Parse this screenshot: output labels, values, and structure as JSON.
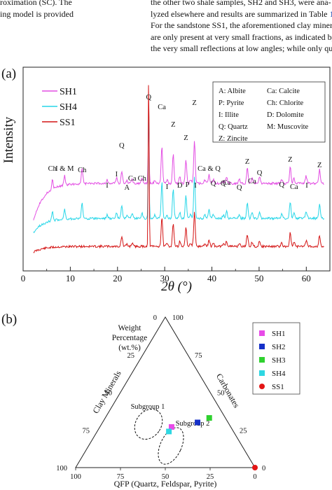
{
  "text": {
    "left_lines": [
      "roximation (SC). The",
      "ing model is provided"
    ],
    "right_lines": [
      "the other two shale samples, SH2 and SH3, were ana-",
      "lyzed elsewhere and results are summarized in Table 1.",
      "For the sandstone SS1, the aforementioned clay minerals",
      "are only present at very small fractions, as indicated by",
      "the very small reflections at low angles; while only quartz"
    ],
    "table_ref": "1"
  },
  "figure_a": {
    "panel_label": "(a)",
    "chart_data": {
      "type": "line",
      "xlabel": "2θ (°)",
      "ylabel": "Intensity",
      "xlim": [
        0,
        65
      ],
      "x_ticks": [
        0,
        10,
        20,
        30,
        40,
        50,
        60
      ],
      "series": [
        {
          "name": "SH1",
          "color": "#e34fe3"
        },
        {
          "name": "SH4",
          "color": "#27d6e8"
        },
        {
          "name": "SS1",
          "color": "#d41515"
        }
      ],
      "legend_placement": "top-left",
      "phase_legend": [
        "A:  Albite",
        "Ca: Calcite",
        "P:  Pyrite",
        "Ch: Chlorite",
        "I:  Illite",
        "D:  Dolomite",
        "Q:  Quartz",
        "M:  Muscovite",
        "Z:  Zincite"
      ],
      "peak_annotations": [
        {
          "label": "Ch",
          "x": 6.2
        },
        {
          "label": "I & M",
          "x": 8.8
        },
        {
          "label": "Ch",
          "x": 12.5
        },
        {
          "label": "I",
          "x": 17.8
        },
        {
          "label": "I",
          "x": 19.8
        },
        {
          "label": "Q",
          "x": 20.9
        },
        {
          "label": "A",
          "x": 22.0
        },
        {
          "label": "Ca",
          "x": 23.1
        },
        {
          "label": "Ch",
          "x": 25.2
        },
        {
          "label": "Q",
          "x": 26.6
        },
        {
          "label": "Ca",
          "x": 29.4
        },
        {
          "label": "I",
          "x": 30.5
        },
        {
          "label": "Z",
          "x": 31.8
        },
        {
          "label": "D",
          "x": 33.2
        },
        {
          "label": "P",
          "x": 34.8
        },
        {
          "label": "Z",
          "x": 34.5
        },
        {
          "label": "Z",
          "x": 36.3
        },
        {
          "label": "I",
          "x": 36.5
        },
        {
          "label": "Ca & Q",
          "x": 39.4
        },
        {
          "label": "Q",
          "x": 40.3
        },
        {
          "label": "Q",
          "x": 42.4
        },
        {
          "label": "Ca",
          "x": 43.1
        },
        {
          "label": "Q",
          "x": 45.8
        },
        {
          "label": "Z",
          "x": 47.5
        },
        {
          "label": "Ca",
          "x": 48.5
        },
        {
          "label": "Q",
          "x": 50.1
        },
        {
          "label": "Q",
          "x": 54.8
        },
        {
          "label": "Z",
          "x": 56.6
        },
        {
          "label": "Ca",
          "x": 57.4
        },
        {
          "label": "I",
          "x": 60.1
        },
        {
          "label": "Z",
          "x": 62.8
        }
      ]
    }
  },
  "figure_b": {
    "panel_label": "(b)",
    "chart_data": {
      "type": "scatter",
      "plot": "ternary",
      "axis_labels": {
        "weight": [
          "Weight",
          "Percentage",
          "(wt.%)"
        ],
        "clay": "Clay Minerals",
        "carbonates": "Carbonates",
        "qfp": "QFP (Quartz, Feldspar, Pyrite)"
      },
      "ticks": [
        "0",
        "25",
        "50",
        "75",
        "100"
      ],
      "series": [
        {
          "name": "SH1",
          "color": "#e84be8",
          "marker": "square",
          "qfp": 40,
          "carb": 27,
          "clay": 33
        },
        {
          "name": "SH2",
          "color": "#1530c8",
          "marker": "square",
          "qfp": 53,
          "carb": 30,
          "clay": 17
        },
        {
          "name": "SH3",
          "color": "#2fd12f",
          "marker": "square",
          "qfp": 58,
          "carb": 33,
          "clay": 9
        },
        {
          "name": "SH4",
          "color": "#2ed7e2",
          "marker": "square",
          "qfp": 40,
          "carb": 24,
          "clay": 36
        },
        {
          "name": "SS1",
          "color": "#e31515",
          "marker": "circle",
          "qfp": 100,
          "carb": 0,
          "clay": 0
        }
      ],
      "groups": [
        {
          "label": "Subgroup 1",
          "members": [
            "SH1",
            "SH4"
          ]
        },
        {
          "label": "Subgroup 2",
          "members": [
            "SH2",
            "SH3"
          ]
        }
      ]
    }
  }
}
